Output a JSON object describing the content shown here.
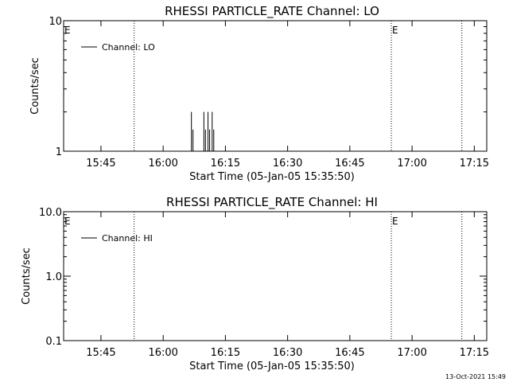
{
  "footer_timestamp": "13-Oct-2021 15:49",
  "chart_data": [
    {
      "type": "line",
      "title": "RHESSI PARTICLE_RATE Channel: LO",
      "xlabel": "Start Time (05-Jan-05 15:35:50)",
      "ylabel": "Counts/sec",
      "y_scale": "log",
      "ylim": [
        1,
        10
      ],
      "yticks": [
        1,
        10
      ],
      "ytick_labels": [
        "1",
        "10"
      ],
      "xlim": [
        "15:36",
        "17:18"
      ],
      "xticks": [
        "15:45",
        "16:00",
        "16:15",
        "16:30",
        "16:45",
        "17:00",
        "17:15"
      ],
      "legend": {
        "placement": "top-left",
        "entries": [
          "Channel: LO"
        ]
      },
      "event_lines": [
        {
          "time": "15:53",
          "label": ""
        },
        {
          "time": "16:55",
          "label": "E"
        },
        {
          "time": "17:12",
          "label": ""
        }
      ],
      "start_marker": "E",
      "grid": false,
      "series": [
        {
          "name": "Channel: LO",
          "points": [
            {
              "x": "16:07",
              "y": 2
            },
            {
              "x": "16:10",
              "y": 2
            },
            {
              "x": "16:11",
              "y": 2
            },
            {
              "x": "16:12",
              "y": 2
            }
          ]
        }
      ]
    },
    {
      "type": "line",
      "title": "RHESSI PARTICLE_RATE Channel: HI",
      "xlabel": "Start Time (05-Jan-05 15:35:50)",
      "ylabel": "Counts/sec",
      "y_scale": "log",
      "ylim": [
        0.1,
        10
      ],
      "yticks": [
        0.1,
        1,
        10
      ],
      "ytick_labels": [
        "0.1",
        "1.0",
        "10.0"
      ],
      "xlim": [
        "15:36",
        "17:18"
      ],
      "xticks": [
        "15:45",
        "16:00",
        "16:15",
        "16:30",
        "16:45",
        "17:00",
        "17:15"
      ],
      "legend": {
        "placement": "top-left",
        "entries": [
          "Channel: HI"
        ]
      },
      "event_lines": [
        {
          "time": "15:53",
          "label": ""
        },
        {
          "time": "16:55",
          "label": "E"
        },
        {
          "time": "17:12",
          "label": ""
        }
      ],
      "start_marker": "E",
      "grid": false,
      "series": [
        {
          "name": "Channel: HI",
          "points": []
        }
      ]
    }
  ]
}
